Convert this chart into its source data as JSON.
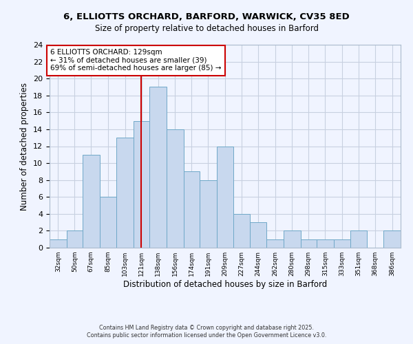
{
  "title1": "6, ELLIOTTS ORCHARD, BARFORD, WARWICK, CV35 8ED",
  "title2": "Size of property relative to detached houses in Barford",
  "xlabel": "Distribution of detached houses by size in Barford",
  "ylabel": "Number of detached properties",
  "bin_labels": [
    "32sqm",
    "50sqm",
    "67sqm",
    "85sqm",
    "103sqm",
    "121sqm",
    "138sqm",
    "156sqm",
    "174sqm",
    "191sqm",
    "209sqm",
    "227sqm",
    "244sqm",
    "262sqm",
    "280sqm",
    "298sqm",
    "315sqm",
    "333sqm",
    "351sqm",
    "368sqm",
    "386sqm"
  ],
  "bin_edges": [
    32,
    50,
    67,
    85,
    103,
    121,
    138,
    156,
    174,
    191,
    209,
    227,
    244,
    262,
    280,
    298,
    315,
    333,
    351,
    368,
    386
  ],
  "counts": [
    1,
    2,
    11,
    6,
    13,
    15,
    19,
    14,
    9,
    8,
    12,
    4,
    3,
    1,
    2,
    1,
    1,
    1,
    2,
    0,
    2
  ],
  "bar_color": "#c8d8ee",
  "bar_edge_color": "#6fa8c8",
  "vline_x": 129,
  "vline_color": "#cc0000",
  "annotation_title": "6 ELLIOTTS ORCHARD: 129sqm",
  "annotation_line1": "← 31% of detached houses are smaller (39)",
  "annotation_line2": "69% of semi-detached houses are larger (85) →",
  "annotation_box_facecolor": "#ffffff",
  "annotation_box_edgecolor": "#cc0000",
  "ylim": [
    0,
    24
  ],
  "yticks": [
    0,
    2,
    4,
    6,
    8,
    10,
    12,
    14,
    16,
    18,
    20,
    22,
    24
  ],
  "footer1": "Contains HM Land Registry data © Crown copyright and database right 2025.",
  "footer2": "Contains public sector information licensed under the Open Government Licence v3.0.",
  "background_color": "#f0f4ff",
  "grid_color": "#c8d0e0"
}
